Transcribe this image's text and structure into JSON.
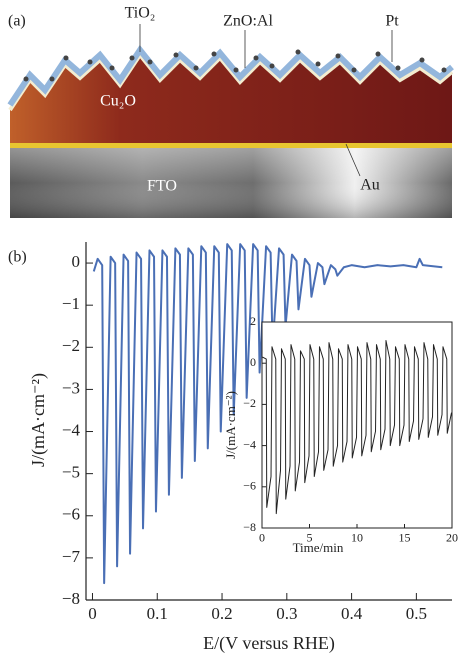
{
  "figure": {
    "panel_a": {
      "label": "(a)",
      "tio2": "TiO₂",
      "zno": "ZnO:Al",
      "pt": "Pt",
      "cu2o": "Cu₂O",
      "fto": "FTO",
      "au": "Au"
    },
    "panel_b": {
      "label": "(b)"
    }
  },
  "chart_data": [
    {
      "type": "line",
      "x_label": "E/(V versus RHE)",
      "y_label": "J/(mA·cm⁻²)",
      "xlim": [
        -0.01,
        0.555
      ],
      "ylim": [
        -8,
        0.5
      ],
      "xticks": [
        0,
        0.1,
        0.2,
        0.3,
        0.4,
        0.5
      ],
      "yticks": [
        {
          "value": -8,
          "label": "−8"
        },
        {
          "value": -7,
          "label": "−7"
        },
        {
          "value": -6,
          "label": "−6"
        },
        {
          "value": -5,
          "label": "−5"
        },
        {
          "value": -4,
          "label": "−4"
        },
        {
          "value": -3,
          "label": "−3"
        },
        {
          "value": -2,
          "label": "−2"
        },
        {
          "value": -1,
          "label": "−1"
        },
        0
      ],
      "grid": false,
      "x": [
        0.002,
        0.008,
        0.015,
        0.018,
        0.028,
        0.035,
        0.038,
        0.048,
        0.055,
        0.058,
        0.068,
        0.075,
        0.078,
        0.088,
        0.095,
        0.098,
        0.108,
        0.115,
        0.118,
        0.128,
        0.135,
        0.138,
        0.148,
        0.155,
        0.158,
        0.168,
        0.175,
        0.178,
        0.188,
        0.195,
        0.198,
        0.208,
        0.215,
        0.218,
        0.228,
        0.235,
        0.238,
        0.248,
        0.255,
        0.258,
        0.268,
        0.275,
        0.278,
        0.288,
        0.295,
        0.298,
        0.308,
        0.315,
        0.318,
        0.328,
        0.335,
        0.338,
        0.348,
        0.355,
        0.358,
        0.368,
        0.375,
        0.378,
        0.388,
        0.4,
        0.42,
        0.44,
        0.46,
        0.48,
        0.5,
        0.505,
        0.51,
        0.54
      ],
      "series": [
        {
          "color": "#4a6fb5",
          "values": [
            -0.2,
            0.1,
            -0.05,
            -7.6,
            0.15,
            0.0,
            -7.2,
            0.2,
            0.05,
            -6.9,
            0.25,
            0.1,
            -6.3,
            0.3,
            0.15,
            -5.9,
            0.3,
            0.15,
            -5.5,
            0.35,
            0.2,
            -5.1,
            0.35,
            0.2,
            -4.7,
            0.4,
            0.25,
            -4.4,
            0.4,
            0.25,
            -4.0,
            0.45,
            0.3,
            -3.6,
            0.45,
            0.3,
            -3.2,
            0.45,
            0.3,
            -2.6,
            0.4,
            0.25,
            -2.0,
            0.35,
            0.2,
            -1.5,
            0.2,
            0.05,
            -1.1,
            0.1,
            -0.05,
            -0.8,
            0.0,
            -0.1,
            -0.5,
            -0.05,
            -0.15,
            -0.3,
            -0.1,
            -0.05,
            -0.1,
            -0.05,
            -0.08,
            -0.05,
            -0.1,
            0.1,
            -0.05,
            -0.1
          ]
        }
      ]
    },
    {
      "type": "line",
      "x_label": "Time/min",
      "y_label": "J/(mA·cm⁻²)",
      "xlim": [
        0,
        20
      ],
      "ylim": [
        -8,
        2
      ],
      "xticks": [
        0,
        5,
        10,
        15,
        20
      ],
      "yticks": [
        {
          "value": -8,
          "label": "−8"
        },
        {
          "value": -6,
          "label": "−6"
        },
        {
          "value": -4,
          "label": "−4"
        },
        {
          "value": -2,
          "label": "−2"
        },
        0,
        2
      ],
      "grid": false,
      "x": [
        0.05,
        0.45,
        0.5,
        0.95,
        1.05,
        1.45,
        1.5,
        1.95,
        2.05,
        2.45,
        2.5,
        2.95,
        3.05,
        3.45,
        3.5,
        3.95,
        4.05,
        4.45,
        4.5,
        4.95,
        5.05,
        5.45,
        5.5,
        5.95,
        6.05,
        6.45,
        6.5,
        6.95,
        7.05,
        7.45,
        7.5,
        7.95,
        8.05,
        8.45,
        8.5,
        8.95,
        9.05,
        9.45,
        9.5,
        9.95,
        10.05,
        10.45,
        10.5,
        10.95,
        11.05,
        11.45,
        11.5,
        11.95,
        12.05,
        12.45,
        12.5,
        12.95,
        13.05,
        13.45,
        13.5,
        13.95,
        14.05,
        14.45,
        14.5,
        14.95,
        15.05,
        15.45,
        15.5,
        15.95,
        16.05,
        16.45,
        16.5,
        16.95,
        17.05,
        17.45,
        17.5,
        17.95,
        18.05,
        18.45,
        18.5,
        18.95,
        19.05,
        19.45,
        19.5,
        19.95
      ],
      "series": [
        {
          "color": "#222222",
          "values": [
            0.3,
            0.2,
            -7.0,
            -5.5,
            0.8,
            0.2,
            -7.3,
            -5.2,
            0.7,
            0.2,
            -6.6,
            -5.0,
            0.9,
            0.2,
            -6.2,
            -4.8,
            0.6,
            0.2,
            -5.8,
            -4.5,
            0.9,
            0.2,
            -5.5,
            -4.3,
            0.8,
            0.2,
            -5.2,
            -4.2,
            1.0,
            0.2,
            -5.0,
            -4.0,
            0.7,
            0.2,
            -4.8,
            -3.8,
            0.9,
            0.2,
            -4.6,
            -3.6,
            0.8,
            0.2,
            -4.5,
            -3.5,
            1.0,
            0.2,
            -4.3,
            -3.3,
            0.9,
            0.2,
            -4.2,
            -3.2,
            1.1,
            0.2,
            -4.0,
            -3.0,
            0.8,
            0.2,
            -4.0,
            -3.0,
            0.9,
            0.2,
            -3.8,
            -2.8,
            0.8,
            0.2,
            -3.7,
            -2.7,
            1.0,
            0.2,
            -3.6,
            -2.6,
            0.9,
            0.2,
            -3.5,
            -2.5,
            0.8,
            0.2,
            -3.4,
            -2.4
          ]
        }
      ]
    }
  ]
}
